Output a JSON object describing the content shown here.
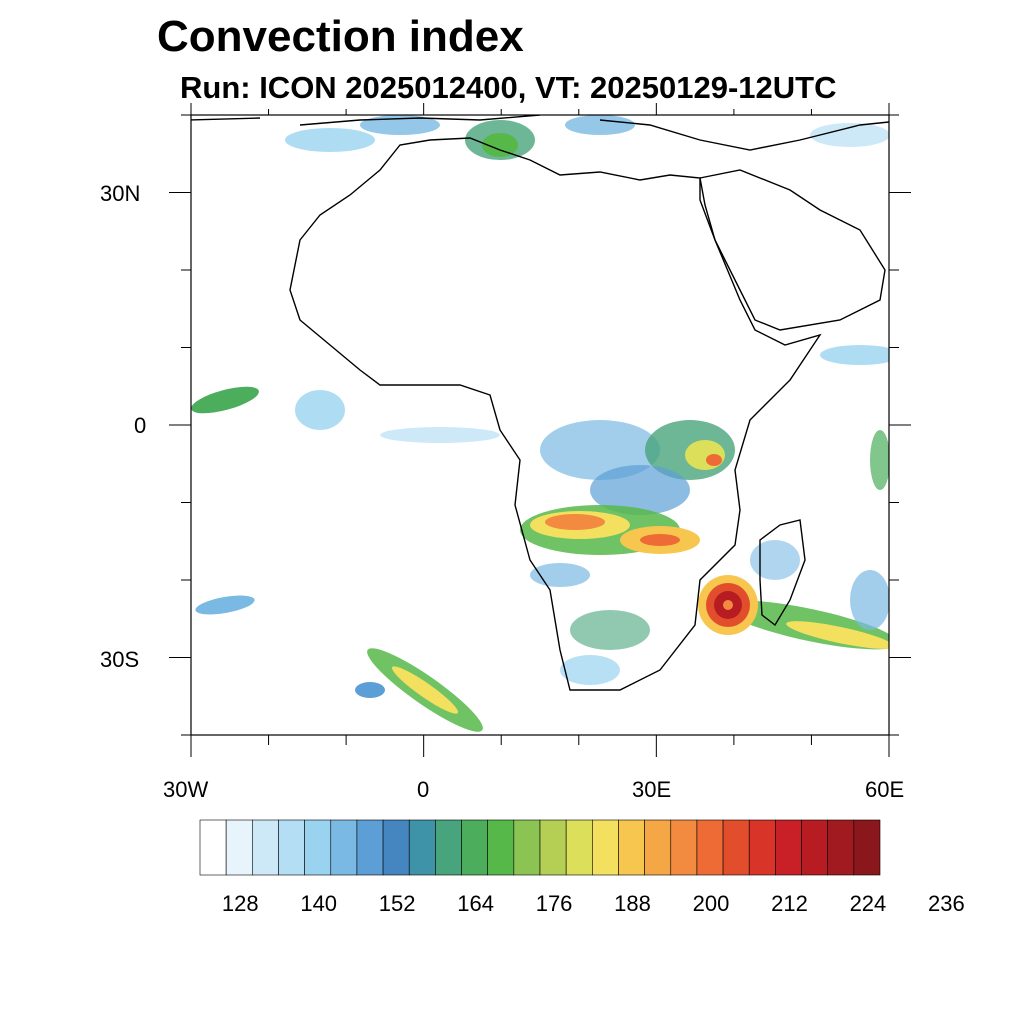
{
  "title": "Convection index",
  "subtitle": "Run: ICON 2025012400,  VT: 20250129-12UTC",
  "axes": {
    "lon_ticks": [
      "30W",
      "0",
      "30E",
      "60E"
    ],
    "lat_ticks": [
      "30N",
      "0",
      "30S"
    ],
    "lon_range": [
      -30,
      60
    ],
    "lat_range": [
      -40,
      40
    ]
  },
  "colorbar": {
    "colors": [
      "#ffffff",
      "#e8f4fb",
      "#cde9f7",
      "#b4def4",
      "#9ad3f0",
      "#7ab9e4",
      "#5c9fd6",
      "#4585c0",
      "#3f93a8",
      "#48a47c",
      "#4cae5c",
      "#57b84a",
      "#8cc454",
      "#b5cf54",
      "#dbdf5a",
      "#f2e05e",
      "#f7c64f",
      "#f5a645",
      "#f28a3f",
      "#ee6b36",
      "#e24d2c",
      "#d83428",
      "#c82026",
      "#b71c23",
      "#a01a1f",
      "#8a171b"
    ],
    "tick_labels": [
      "128",
      "140",
      "152",
      "164",
      "176",
      "188",
      "200",
      "212",
      "224",
      "236"
    ],
    "tick_positions": [
      2,
      5,
      8,
      11,
      14,
      17,
      20,
      23,
      26,
      29
    ]
  }
}
